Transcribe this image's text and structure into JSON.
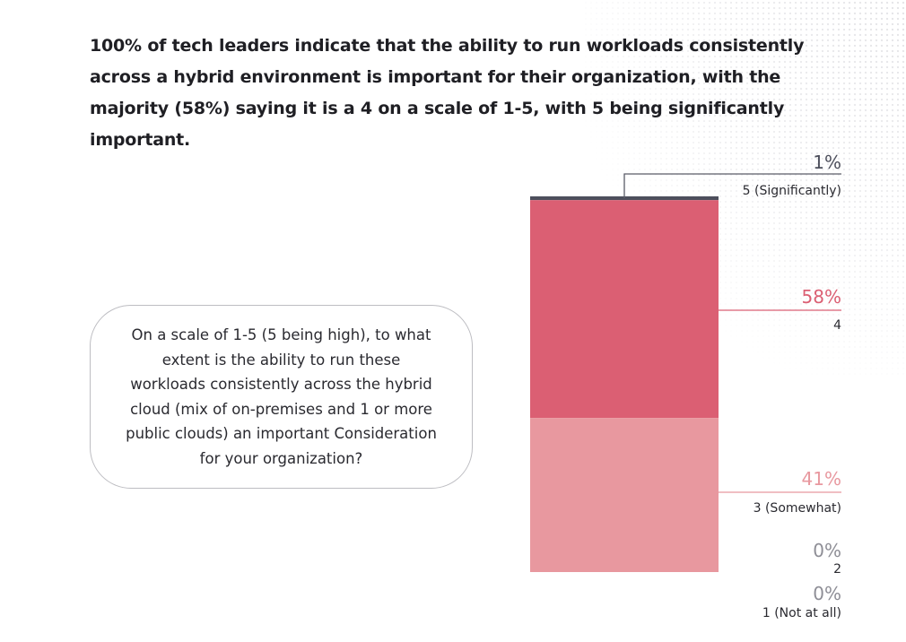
{
  "headline": "100% of tech leaders indicate that the ability to run workloads consistently across a hybrid environment is important for their organization, with the majority (58%) saying it is a 4 on a scale of 1-5, with 5 being significantly important.",
  "question": "On a scale of 1-5 (5 being high), to what extent is the ability to run these workloads consistently across the hybrid cloud (mix of on-premises and 1 or more public clouds) an important Consideration for your organization?",
  "chart_data": {
    "type": "bar",
    "stacked": true,
    "categories": [
      "5 (Significantly)",
      "4",
      "3 (Somewhat)",
      "2",
      "1 (Not at all)"
    ],
    "values": [
      1,
      58,
      41,
      0,
      0
    ],
    "value_labels": [
      "1%",
      "58%",
      "41%",
      "0%",
      "0%"
    ],
    "colors": [
      "#4d4f5c",
      "#db5f73",
      "#e8989f",
      "#8e8e96",
      "#8e8e96"
    ],
    "unit": "%",
    "ylim": [
      0,
      100
    ],
    "title": "",
    "xlabel": "",
    "ylabel": ""
  }
}
